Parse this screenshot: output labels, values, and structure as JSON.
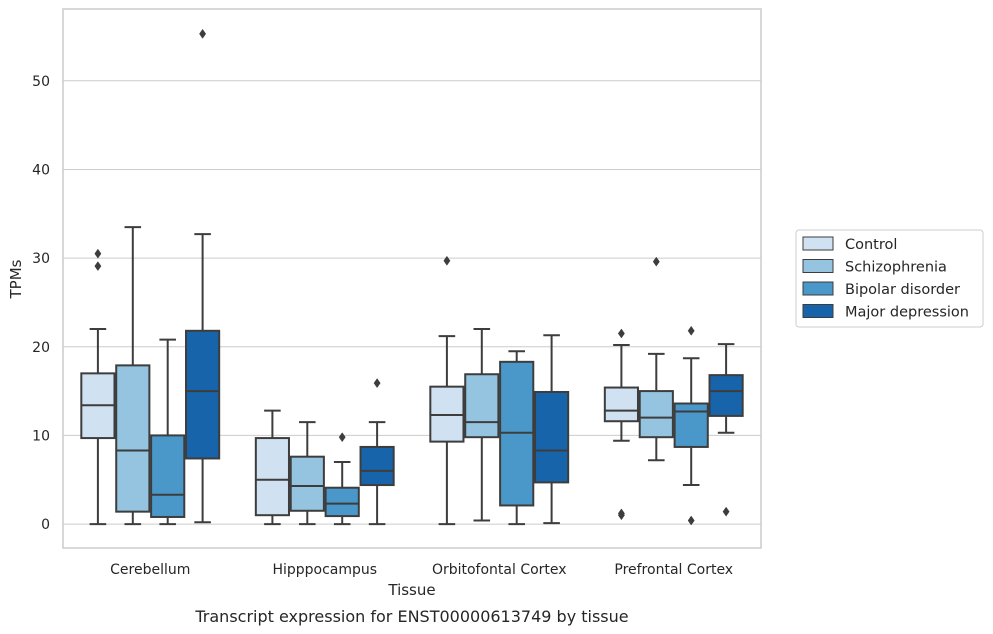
{
  "chart_data": {
    "type": "box",
    "title": "",
    "caption": "Transcript expression for ENST00000613749 by tissue",
    "xlabel": "Tissue",
    "ylabel": "TPMs",
    "ylim": [
      -2.7,
      58.1
    ],
    "yticks": [
      0,
      10,
      20,
      30,
      40,
      50
    ],
    "grid": "horizontal",
    "legend_position": "right",
    "categories": [
      "Cerebellum",
      "Hipppocampus",
      "Orbitofontal Cortex",
      "Prefrontal Cortex"
    ],
    "series": [
      {
        "name": "Control",
        "color": "#d0e1f2",
        "boxes": [
          {
            "whisker_low": 0,
            "q1": 9.7,
            "median": 13.4,
            "q3": 17.0,
            "whisker_high": 22.0,
            "outliers": [
              29.1,
              30.5
            ]
          },
          {
            "whisker_low": 0,
            "q1": 1.0,
            "median": 5.0,
            "q3": 9.7,
            "whisker_high": 12.8,
            "outliers": []
          },
          {
            "whisker_low": 0,
            "q1": 9.3,
            "median": 12.3,
            "q3": 15.5,
            "whisker_high": 21.2,
            "outliers": [
              29.7
            ]
          },
          {
            "whisker_low": 9.4,
            "q1": 11.6,
            "median": 12.8,
            "q3": 15.4,
            "whisker_high": 20.2,
            "outliers": [
              1.0,
              1.2,
              21.5
            ]
          }
        ]
      },
      {
        "name": "Schizophrenia",
        "color": "#94c4df",
        "boxes": [
          {
            "whisker_low": 0,
            "q1": 1.4,
            "median": 8.3,
            "q3": 17.9,
            "whisker_high": 33.5,
            "outliers": []
          },
          {
            "whisker_low": 0,
            "q1": 1.5,
            "median": 4.3,
            "q3": 7.6,
            "whisker_high": 11.5,
            "outliers": []
          },
          {
            "whisker_low": 0.4,
            "q1": 9.8,
            "median": 11.5,
            "q3": 16.9,
            "whisker_high": 22.0,
            "outliers": []
          },
          {
            "whisker_low": 7.2,
            "q1": 9.8,
            "median": 12.0,
            "q3": 15.0,
            "whisker_high": 19.2,
            "outliers": [
              29.6
            ]
          }
        ]
      },
      {
        "name": "Bipolar disorder",
        "color": "#4a98c9",
        "boxes": [
          {
            "whisker_low": 0,
            "q1": 0.8,
            "median": 3.3,
            "q3": 10.0,
            "whisker_high": 20.8,
            "outliers": []
          },
          {
            "whisker_low": 0,
            "q1": 0.9,
            "median": 2.3,
            "q3": 4.1,
            "whisker_high": 7.0,
            "outliers": [
              9.8
            ]
          },
          {
            "whisker_low": 0,
            "q1": 2.1,
            "median": 10.3,
            "q3": 18.3,
            "whisker_high": 19.5,
            "outliers": []
          },
          {
            "whisker_low": 4.4,
            "q1": 8.7,
            "median": 12.7,
            "q3": 13.6,
            "whisker_high": 18.7,
            "outliers": [
              0.4,
              21.8
            ]
          }
        ]
      },
      {
        "name": "Major depression",
        "color": "#1764ab",
        "boxes": [
          {
            "whisker_low": 0.2,
            "q1": 7.4,
            "median": 15.0,
            "q3": 21.8,
            "whisker_high": 32.7,
            "outliers": [
              55.3
            ]
          },
          {
            "whisker_low": 0,
            "q1": 4.4,
            "median": 6.0,
            "q3": 8.7,
            "whisker_high": 11.5,
            "outliers": [
              15.9
            ]
          },
          {
            "whisker_low": 0.1,
            "q1": 4.7,
            "median": 8.3,
            "q3": 14.9,
            "whisker_high": 21.3,
            "outliers": []
          },
          {
            "whisker_low": 10.3,
            "q1": 12.2,
            "median": 15.0,
            "q3": 16.8,
            "whisker_high": 20.3,
            "outliers": [
              1.4
            ]
          }
        ]
      }
    ]
  }
}
